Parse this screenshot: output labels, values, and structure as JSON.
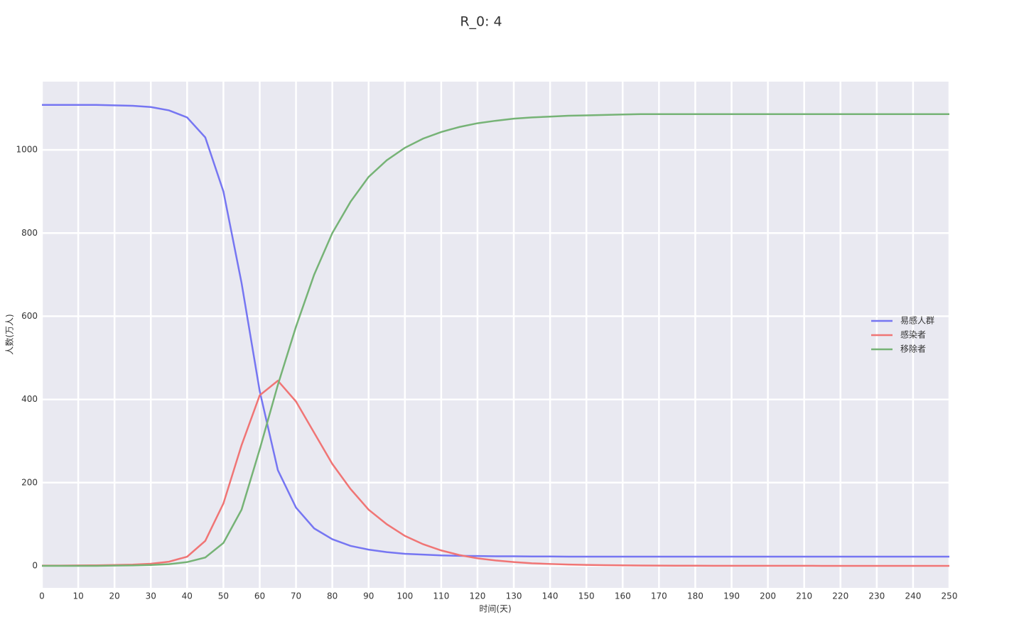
{
  "chart_data": {
    "type": "line",
    "title": "R_0: 4",
    "xlabel": "时间(天)",
    "ylabel": "人数(万人)",
    "x": [
      0,
      5,
      10,
      15,
      20,
      25,
      30,
      35,
      40,
      45,
      50,
      55,
      60,
      65,
      70,
      75,
      80,
      85,
      90,
      95,
      100,
      105,
      110,
      115,
      120,
      125,
      130,
      135,
      140,
      145,
      150,
      155,
      160,
      165,
      170,
      175,
      180,
      185,
      190,
      195,
      200,
      205,
      210,
      215,
      220,
      225,
      230,
      235,
      240,
      245,
      250
    ],
    "series": [
      {
        "name": "易感人群",
        "color": "#7676f2",
        "values": [
          1108,
          1108,
          1108,
          1108,
          1107,
          1106,
          1103,
          1095,
          1078,
          1030,
          900,
          680,
          420,
          230,
          140,
          90,
          64,
          48,
          39,
          33,
          29,
          27,
          25,
          24,
          23.5,
          23,
          23,
          22.5,
          22.5,
          22,
          22,
          22,
          22,
          22,
          22,
          22,
          22,
          22,
          22,
          22,
          22,
          22,
          22,
          22,
          22,
          22,
          22,
          22,
          22,
          22,
          22
        ]
      },
      {
        "name": "感染者",
        "color": "#f07575",
        "values": [
          0.5,
          0.6,
          0.9,
          1.3,
          2,
          3,
          5,
          10,
          22,
          60,
          150,
          290,
          410,
          445,
          395,
          320,
          245,
          185,
          135,
          100,
          72,
          52,
          37,
          26,
          18,
          13,
          9,
          6,
          4.5,
          3.2,
          2.2,
          1.6,
          1.1,
          0.8,
          0.6,
          0.4,
          0.3,
          0.2,
          0.2,
          0.1,
          0.1,
          0.1,
          0.1,
          0,
          0,
          0,
          0,
          0,
          0,
          0,
          0
        ]
      },
      {
        "name": "移除者",
        "color": "#76b376",
        "values": [
          0,
          0,
          0,
          0,
          0.5,
          1,
          2,
          4,
          9,
          20,
          55,
          135,
          280,
          435,
          575,
          700,
          800,
          875,
          935,
          975,
          1005,
          1027,
          1043,
          1055,
          1064,
          1070,
          1075,
          1078,
          1080,
          1082,
          1083,
          1084,
          1085,
          1086,
          1086,
          1086,
          1086,
          1086,
          1086,
          1086,
          1086,
          1086,
          1086,
          1086,
          1086,
          1086,
          1086,
          1086,
          1086,
          1086,
          1086
        ]
      }
    ],
    "xlim": [
      0,
      250
    ],
    "ylim": [
      -53,
      1164
    ],
    "xticks": [
      0,
      10,
      20,
      30,
      40,
      50,
      60,
      70,
      80,
      90,
      100,
      110,
      120,
      130,
      140,
      150,
      160,
      170,
      180,
      190,
      200,
      210,
      220,
      230,
      240,
      250
    ],
    "yticks": [
      0,
      200,
      400,
      600,
      800,
      1000
    ],
    "grid": true,
    "legend": "right"
  }
}
